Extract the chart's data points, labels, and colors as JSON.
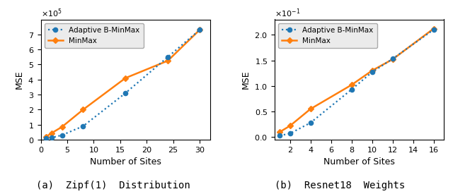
{
  "plot1": {
    "title": "(a) Zipf(1) Distribution",
    "xlabel": "Number of Sites",
    "ylabel": "MSE",
    "adaptive_x": [
      1,
      2,
      4,
      8,
      16,
      24,
      30
    ],
    "adaptive_y": [
      8000,
      13000,
      30000,
      90000,
      310000,
      550000,
      730000
    ],
    "minmax_x": [
      1,
      2,
      4,
      8,
      16,
      24,
      30
    ],
    "minmax_y": [
      20000,
      43000,
      85000,
      200000,
      410000,
      525000,
      730000
    ],
    "xlim": [
      0,
      32
    ],
    "ylim": [
      0,
      800000
    ],
    "xticks": [
      0,
      5,
      10,
      15,
      20,
      25,
      30
    ],
    "yticks": [
      0,
      100000,
      200000,
      300000,
      400000,
      500000,
      600000,
      700000
    ]
  },
  "plot2": {
    "title": "(b) Resnet18 Weights",
    "xlabel": "Number of Sites",
    "ylabel": "MSE",
    "adaptive_x": [
      1,
      2,
      4,
      8,
      10,
      12,
      16
    ],
    "adaptive_y": [
      0.003,
      0.007,
      0.028,
      0.093,
      0.127,
      0.153,
      0.21
    ],
    "minmax_x": [
      1,
      2,
      4,
      8,
      10,
      12,
      16
    ],
    "minmax_y": [
      0.01,
      0.022,
      0.055,
      0.102,
      0.13,
      0.152,
      0.212
    ],
    "xlim": [
      0.5,
      17
    ],
    "ylim": [
      -0.005,
      0.23
    ],
    "xticks": [
      2,
      4,
      6,
      8,
      10,
      12,
      14,
      16
    ],
    "yticks": [
      0.0,
      0.05,
      0.1,
      0.15,
      0.2
    ]
  },
  "adaptive_color": "#1f77b4",
  "minmax_color": "#ff7f0e",
  "adaptive_label": "Adaptive B-MinMax",
  "minmax_label": "MinMax",
  "legend_facecolor": "#ebebeb",
  "caption1": "(a)  Zipf(1)  Distribution",
  "caption2": "(b)  Resnet18  Weights"
}
